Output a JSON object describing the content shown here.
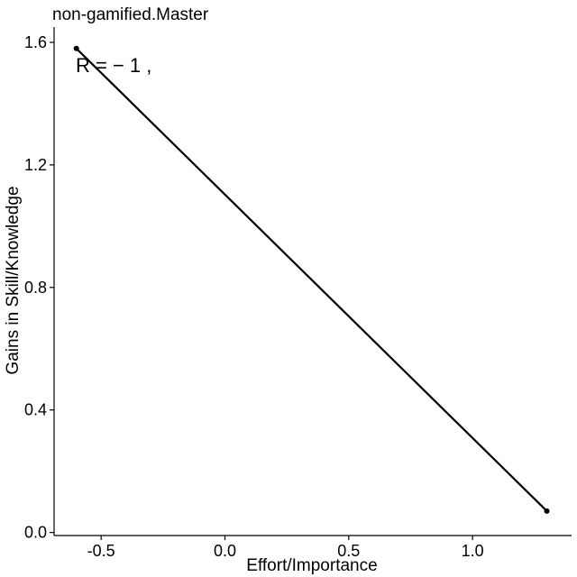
{
  "chart_data": {
    "type": "scatter",
    "title": "non-gamified.Master",
    "xlabel": "Effort/Importance",
    "ylabel": "Gains in Skill/Knowledge",
    "annotation": "R = − 1 ,",
    "xlim": [
      -0.69,
      1.4
    ],
    "ylim": [
      -0.01,
      1.65
    ],
    "x_ticks": [
      -0.5,
      0.0,
      0.5,
      1.0
    ],
    "x_tick_labels": [
      "-0.5",
      "0.0",
      "0.5",
      "1.0"
    ],
    "y_ticks": [
      0.0,
      0.4,
      0.8,
      1.2,
      1.6
    ],
    "y_tick_labels": [
      "0.0",
      "0.4",
      "0.8",
      "1.2",
      "1.6"
    ],
    "points": [
      {
        "x": -0.6,
        "y": 1.58
      },
      {
        "x": 1.3,
        "y": 0.07
      }
    ],
    "fit_line": {
      "x": [
        -0.6,
        1.3
      ],
      "y": [
        1.58,
        0.07
      ]
    },
    "grid": false,
    "legend": "none",
    "colors": {
      "line": "#000000",
      "points": "#000000"
    }
  }
}
